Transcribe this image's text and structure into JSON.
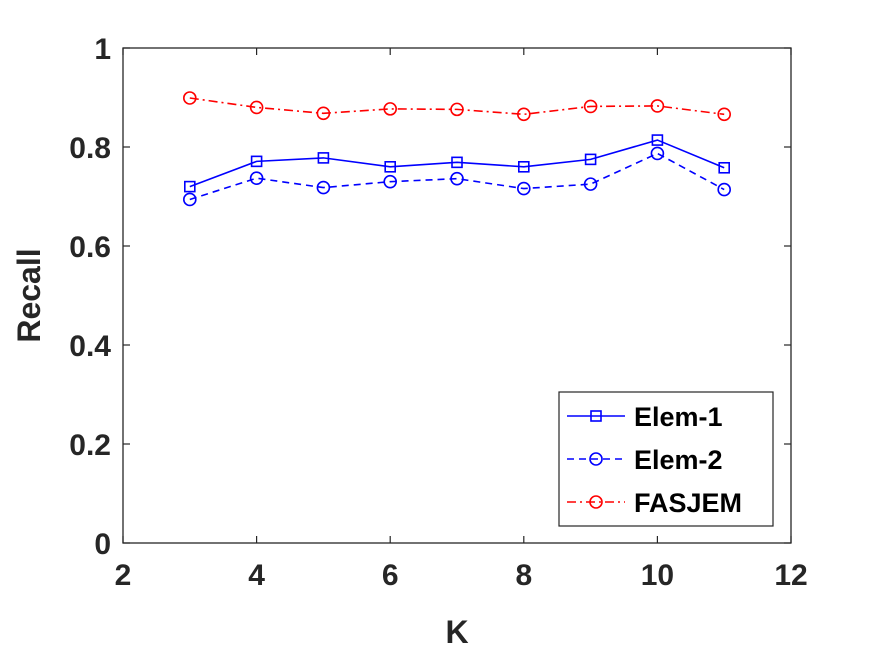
{
  "chart_data": {
    "type": "line",
    "title": "",
    "xlabel": "K",
    "ylabel": "Recall",
    "xlim": [
      2,
      12
    ],
    "ylim": [
      0,
      1
    ],
    "xticks": [
      "2",
      "4",
      "6",
      "8",
      "10",
      "12"
    ],
    "yticks": [
      "0",
      "0.2",
      "0.4",
      "0.6",
      "0.8",
      "1"
    ],
    "grid": false,
    "legend_position": "bottom-right",
    "x": [
      3,
      4,
      5,
      6,
      7,
      8,
      9,
      10,
      11
    ],
    "series": [
      {
        "name": "Elem-1",
        "values": [
          0.72,
          0.771,
          0.778,
          0.76,
          0.769,
          0.76,
          0.775,
          0.814,
          0.758
        ],
        "color": "#0000ff",
        "line_style": "solid",
        "marker": "square"
      },
      {
        "name": "Elem-2",
        "values": [
          0.694,
          0.737,
          0.718,
          0.73,
          0.736,
          0.716,
          0.725,
          0.787,
          0.714
        ],
        "color": "#0000ff",
        "line_style": "dashed",
        "marker": "circle"
      },
      {
        "name": "FASJEM",
        "values": [
          0.899,
          0.88,
          0.868,
          0.877,
          0.876,
          0.866,
          0.882,
          0.883,
          0.866
        ],
        "color": "#ff0000",
        "line_style": "dash-dot",
        "marker": "circle"
      }
    ]
  }
}
